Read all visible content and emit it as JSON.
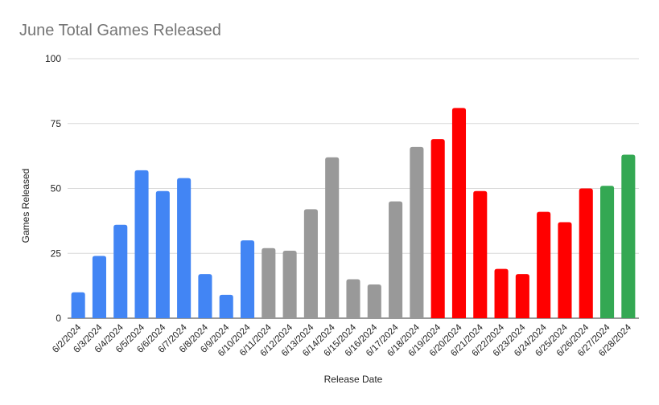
{
  "chart_data": {
    "type": "bar",
    "title": "June Total Games Released",
    "xlabel": "Release Date",
    "ylabel": "Games Released",
    "ylim": [
      0,
      100
    ],
    "yticks": [
      "0",
      "25",
      "50",
      "75",
      "100"
    ],
    "grid": true,
    "legend": "none",
    "categories": [
      "6/2/2024",
      "6/3/2024",
      "6/4/2024",
      "6/5/2024",
      "6/6/2024",
      "6/7/2024",
      "6/8/2024",
      "6/9/2024",
      "6/10/2024",
      "6/11/2024",
      "6/12/2024",
      "6/13/2024",
      "6/14/2024",
      "6/15/2024",
      "6/16/2024",
      "6/17/2024",
      "6/18/2024",
      "6/19/2024",
      "6/20/2024",
      "6/21/2024",
      "6/22/2024",
      "6/23/2024",
      "6/24/2024",
      "6/25/2024",
      "6/26/2024",
      "6/27/2024",
      "6/28/2024"
    ],
    "values": [
      10,
      24,
      36,
      57,
      49,
      54,
      17,
      9,
      30,
      27,
      26,
      42,
      62,
      15,
      13,
      45,
      66,
      69,
      81,
      49,
      19,
      17,
      41,
      37,
      50,
      51,
      63
    ],
    "bar_colors": [
      "#4285f4",
      "#4285f4",
      "#4285f4",
      "#4285f4",
      "#4285f4",
      "#4285f4",
      "#4285f4",
      "#4285f4",
      "#4285f4",
      "#999999",
      "#999999",
      "#999999",
      "#999999",
      "#999999",
      "#999999",
      "#999999",
      "#999999",
      "#ff0000",
      "#ff0000",
      "#ff0000",
      "#ff0000",
      "#ff0000",
      "#ff0000",
      "#ff0000",
      "#ff0000",
      "#34a853",
      "#34a853"
    ]
  }
}
